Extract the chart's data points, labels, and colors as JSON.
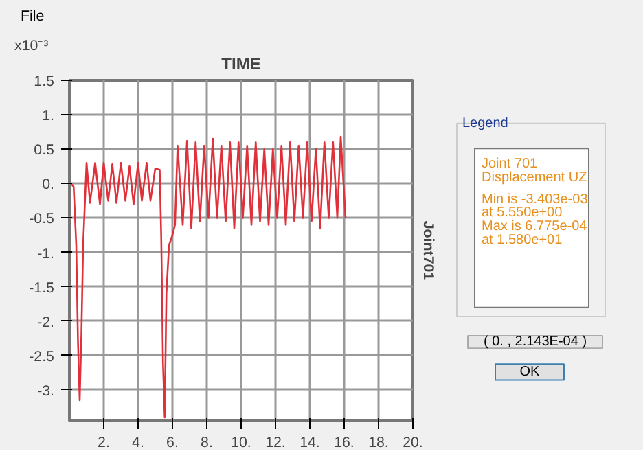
{
  "chart_data": {
    "type": "line",
    "title": "TIME",
    "ylabel": "x10⁻³",
    "y2label": "Joint701",
    "x": [
      0.1,
      0.25,
      0.4,
      0.5,
      0.6,
      0.7,
      0.8,
      0.9,
      1.0,
      1.2,
      1.5,
      1.78,
      2.0,
      2.26,
      2.5,
      2.74,
      3.0,
      3.26,
      3.5,
      3.74,
      4.0,
      4.22,
      4.5,
      4.72,
      5.0,
      5.26,
      5.35,
      5.45,
      5.55,
      5.65,
      5.8,
      6.0,
      6.15,
      6.3,
      6.6,
      6.85,
      7.1,
      7.35,
      7.6,
      7.85,
      8.1,
      8.35,
      8.6,
      8.85,
      9.1,
      9.35,
      9.6,
      9.85,
      10.1,
      10.35,
      10.6,
      10.85,
      11.1,
      11.35,
      11.6,
      11.85,
      12.1,
      12.35,
      12.6,
      12.85,
      13.1,
      13.35,
      13.6,
      13.85,
      14.1,
      14.35,
      14.6,
      14.85,
      15.1,
      15.35,
      15.6,
      15.8,
      16.08
    ],
    "series": [
      {
        "color": "#e0303a",
        "values": [
          0.0,
          -0.05,
          -0.9,
          -2.3,
          -3.15,
          -2.2,
          -0.9,
          -0.3,
          0.3,
          -0.28,
          0.3,
          -0.3,
          0.3,
          -0.25,
          0.28,
          -0.28,
          0.3,
          -0.25,
          0.25,
          -0.3,
          0.3,
          -0.25,
          0.3,
          -0.25,
          0.22,
          0.2,
          -0.8,
          -2.6,
          -3.4,
          -1.6,
          -0.9,
          -0.75,
          -0.6,
          0.55,
          -0.6,
          0.62,
          -0.65,
          0.6,
          -0.55,
          0.55,
          -0.5,
          0.65,
          -0.5,
          0.55,
          -0.55,
          0.6,
          -0.65,
          0.6,
          -0.5,
          0.55,
          -0.6,
          0.6,
          -0.55,
          0.5,
          -0.6,
          0.5,
          -0.5,
          0.55,
          -0.6,
          0.6,
          -0.55,
          0.55,
          -0.5,
          0.6,
          -0.55,
          0.5,
          -0.65,
          0.6,
          -0.5,
          0.6,
          -0.5,
          0.68,
          -0.5
        ]
      }
    ],
    "xlim": [
      0,
      20
    ],
    "ylim": [
      -3.45,
      1.5
    ],
    "xticks": [
      {
        "value": 2,
        "label": "2."
      },
      {
        "value": 4,
        "label": "4."
      },
      {
        "value": 6,
        "label": "6."
      },
      {
        "value": 8,
        "label": "8."
      },
      {
        "value": 10,
        "label": "10."
      },
      {
        "value": 12,
        "label": "12."
      },
      {
        "value": 14,
        "label": "14."
      },
      {
        "value": 16,
        "label": "16."
      },
      {
        "value": 18,
        "label": "18."
      },
      {
        "value": 20,
        "label": "20."
      }
    ],
    "yticks": [
      {
        "value": 1.5,
        "label": "1.5"
      },
      {
        "value": 1,
        "label": "1."
      },
      {
        "value": 0.5,
        "label": "0.5"
      },
      {
        "value": 0,
        "label": "0."
      },
      {
        "value": -0.5,
        "label": "-0.5"
      },
      {
        "value": -1,
        "label": "-1."
      },
      {
        "value": -1.5,
        "label": "-1.5"
      },
      {
        "value": -2,
        "label": "-2."
      },
      {
        "value": -2.5,
        "label": "-2.5"
      },
      {
        "value": -3,
        "label": "-3."
      }
    ],
    "grid": true,
    "marker": "none",
    "line_style": "solid",
    "annotations": [
      "File",
      "Legend",
      "Joint 701",
      "Displacement  UZ",
      "Min is -3.403e-03",
      "at 5.550e+00",
      "Max is 6.775e-04",
      "at 1.580e+01",
      "( 0. , 2.143E-04 )",
      "OK"
    ]
  }
}
